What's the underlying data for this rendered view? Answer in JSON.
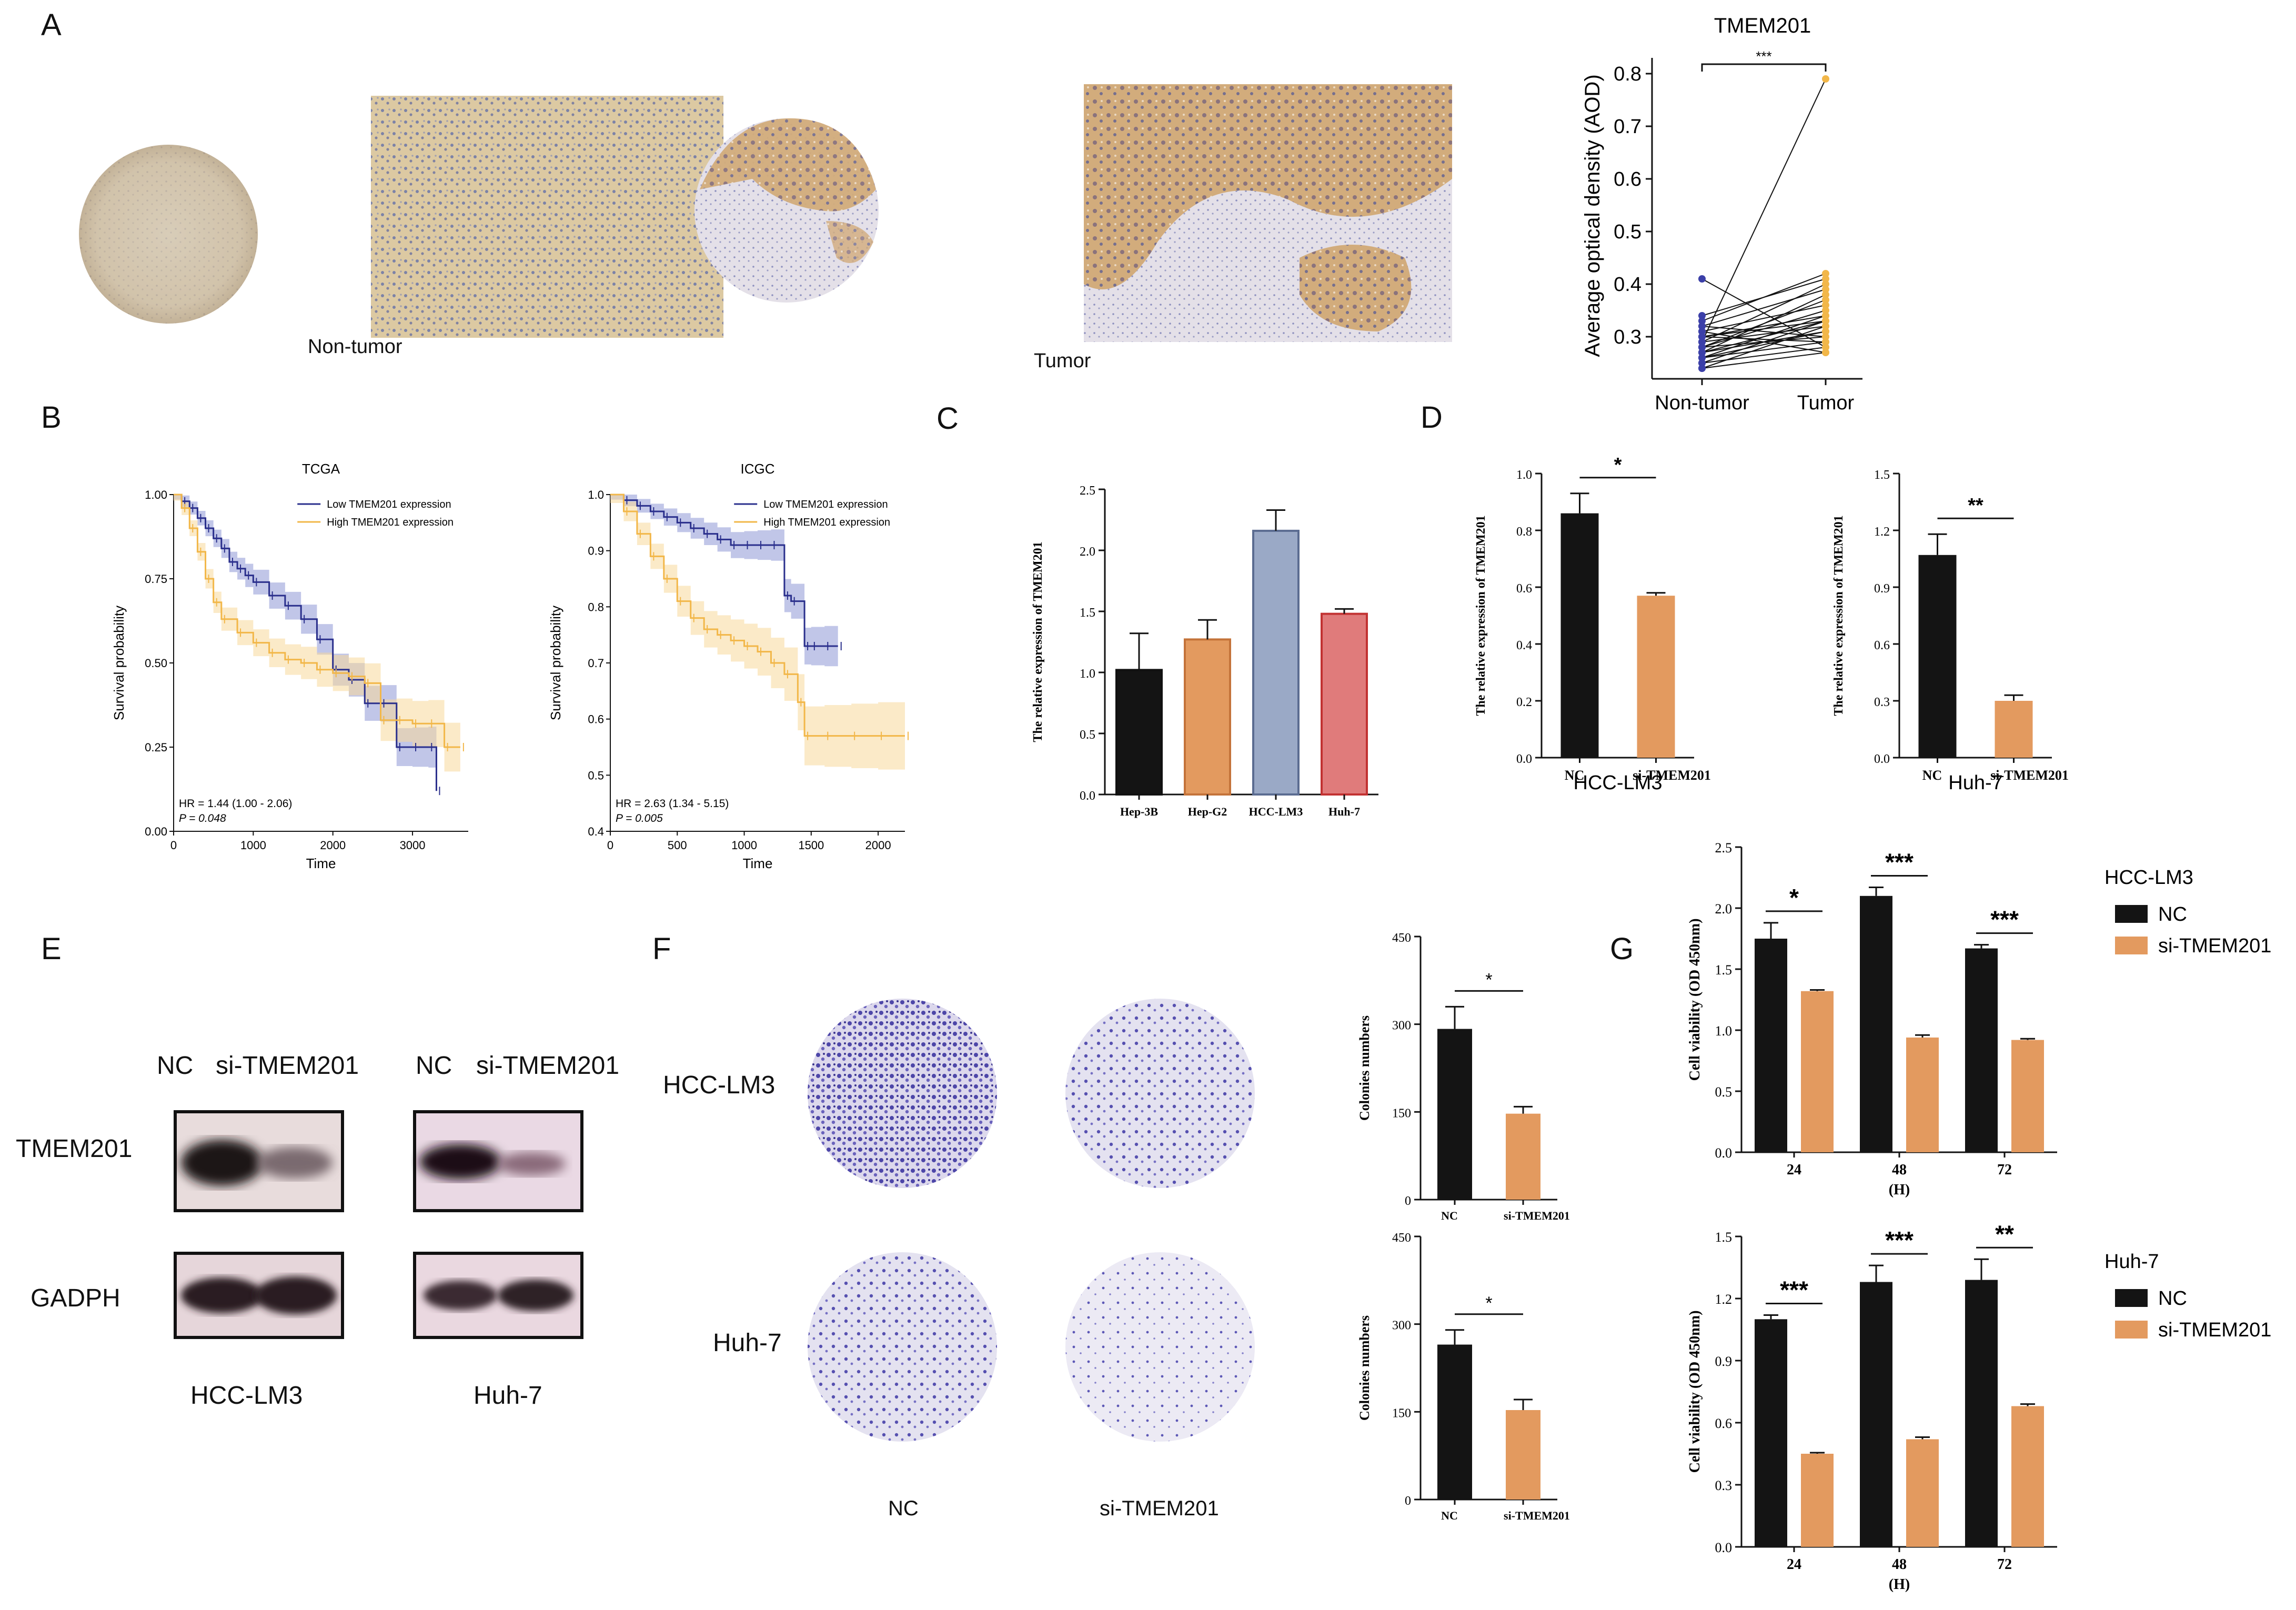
{
  "panels": {
    "A": "A",
    "B": "B",
    "C": "C",
    "D": "D",
    "E": "E",
    "F": "F",
    "G": "G"
  },
  "colors": {
    "black": "#121212",
    "orange": "#e39a5f",
    "blue": "#9aa9c6",
    "red": "#e07b7b",
    "navy": "#2a2f8c",
    "yellow": "#f2b749",
    "tissue_tan": "#d9b88c",
    "stain_purple": "#6b62b8"
  },
  "panel_a": {
    "non_tumor_label": "Non-tumor",
    "tumor_label": "Tumor"
  },
  "panel_e": {
    "lane_labels": [
      "NC",
      "si-TMEM201",
      "NC",
      "si-TMEM201"
    ],
    "row_labels": [
      "TMEM201",
      "GADPH"
    ],
    "group_labels": [
      "HCC-LM3",
      "Huh-7"
    ]
  },
  "panel_f": {
    "row_labels": [
      "HCC-LM3",
      "Huh-7"
    ],
    "col_labels": [
      "NC",
      "si-TMEM201"
    ]
  },
  "chart_data": [
    {
      "id": "A-aod",
      "type": "line",
      "title": "TMEM201",
      "ylabel": "Average optical density (AOD)",
      "categories": [
        "Non-tumor",
        "Tumor"
      ],
      "yticks": [
        "0.3",
        "0.4",
        "0.5",
        "0.6",
        "0.7",
        "0.8"
      ],
      "ylim": [
        0.23,
        0.83
      ],
      "significance": "***",
      "pairs": [
        [
          0.41,
          0.28
        ],
        [
          0.34,
          0.41
        ],
        [
          0.33,
          0.42
        ],
        [
          0.32,
          0.39
        ],
        [
          0.31,
          0.36
        ],
        [
          0.3,
          0.34
        ],
        [
          0.3,
          0.33
        ],
        [
          0.29,
          0.32
        ],
        [
          0.29,
          0.4
        ],
        [
          0.28,
          0.3
        ],
        [
          0.28,
          0.35
        ],
        [
          0.27,
          0.31
        ],
        [
          0.27,
          0.38
        ],
        [
          0.26,
          0.29
        ],
        [
          0.26,
          0.34
        ],
        [
          0.25,
          0.33
        ],
        [
          0.25,
          0.28
        ],
        [
          0.24,
          0.32
        ],
        [
          0.24,
          0.27
        ],
        [
          0.32,
          0.3
        ],
        [
          0.31,
          0.27
        ],
        [
          0.3,
          0.29
        ],
        [
          0.28,
          0.37
        ],
        [
          0.27,
          0.33
        ],
        [
          0.26,
          0.31
        ],
        [
          0.29,
          0.79
        ]
      ]
    },
    {
      "id": "B-tcga",
      "type": "line",
      "title": "TCGA",
      "xlabel": "Time",
      "ylabel": "Survival probability",
      "xticks": [
        "0",
        "1000",
        "2000",
        "3000"
      ],
      "yticks": [
        "0.00",
        "0.25",
        "0.50",
        "0.75",
        "1.00"
      ],
      "xlim": [
        0,
        3700
      ],
      "ylim": [
        0,
        1
      ],
      "legend": [
        "Low TMEM201 expression",
        "High TMEM201 expression"
      ],
      "hr_text": "HR = 1.44 (1.00 -  2.06)",
      "p_text": "P = 0.048",
      "series": [
        {
          "name": "Low TMEM201 expression",
          "x": [
            0,
            100,
            200,
            300,
            400,
            500,
            600,
            700,
            800,
            900,
            1000,
            1200,
            1400,
            1600,
            1800,
            2000,
            2200,
            2400,
            2600,
            2800,
            3000,
            3200,
            3300
          ],
          "y": [
            1.0,
            0.98,
            0.96,
            0.93,
            0.9,
            0.87,
            0.84,
            0.8,
            0.78,
            0.76,
            0.74,
            0.7,
            0.67,
            0.63,
            0.57,
            0.48,
            0.45,
            0.38,
            0.38,
            0.25,
            0.25,
            0.25,
            0.12
          ]
        },
        {
          "name": "High TMEM201 expression",
          "x": [
            0,
            100,
            200,
            300,
            400,
            500,
            600,
            800,
            1000,
            1200,
            1400,
            1600,
            1800,
            2000,
            2200,
            2400,
            2600,
            2800,
            3000,
            3200,
            3400,
            3600
          ],
          "y": [
            1.0,
            0.96,
            0.9,
            0.83,
            0.75,
            0.68,
            0.63,
            0.59,
            0.56,
            0.53,
            0.51,
            0.5,
            0.48,
            0.47,
            0.46,
            0.44,
            0.33,
            0.33,
            0.32,
            0.32,
            0.25,
            0.25
          ]
        }
      ]
    },
    {
      "id": "B-icgc",
      "type": "line",
      "title": "ICGC",
      "xlabel": "Time",
      "ylabel": "Survival probability",
      "xticks": [
        "0",
        "500",
        "1000",
        "1500",
        "2000"
      ],
      "yticks": [
        "0.4",
        "0.5",
        "0.6",
        "0.7",
        "0.8",
        "0.9",
        "1.0"
      ],
      "xlim": [
        0,
        2200
      ],
      "ylim": [
        0.4,
        1.0
      ],
      "legend": [
        "Low TMEM201 expression",
        "High TMEM201 expression"
      ],
      "hr_text": "HR = 2.63 (1.34 -  5.15)",
      "p_text": "P = 0.005",
      "series": [
        {
          "name": "Low TMEM201 expression",
          "x": [
            0,
            100,
            200,
            300,
            400,
            500,
            600,
            700,
            800,
            900,
            1000,
            1100,
            1200,
            1300,
            1350,
            1450,
            1500,
            1600,
            1700
          ],
          "y": [
            1.0,
            0.99,
            0.98,
            0.97,
            0.96,
            0.95,
            0.94,
            0.93,
            0.92,
            0.91,
            0.91,
            0.91,
            0.91,
            0.82,
            0.81,
            0.73,
            0.73,
            0.73,
            0.73
          ]
        },
        {
          "name": "High TMEM201 expression",
          "x": [
            0,
            100,
            200,
            300,
            400,
            500,
            600,
            700,
            800,
            900,
            1000,
            1100,
            1200,
            1300,
            1400,
            1450,
            1600,
            1800,
            2000,
            2200
          ],
          "y": [
            1.0,
            0.97,
            0.93,
            0.89,
            0.85,
            0.81,
            0.78,
            0.76,
            0.75,
            0.74,
            0.73,
            0.72,
            0.7,
            0.68,
            0.63,
            0.57,
            0.57,
            0.57,
            0.57,
            0.57
          ]
        }
      ]
    },
    {
      "id": "C",
      "type": "bar",
      "ylabel": "The relative expression of TMEM201",
      "categories": [
        "Hep-3B",
        "Hep-G2",
        "HCC-LM3",
        "Huh-7"
      ],
      "values": [
        1.02,
        1.27,
        2.16,
        1.48
      ],
      "errors": [
        0.3,
        0.16,
        0.17,
        0.04
      ],
      "yticks": [
        "0.0",
        "0.5",
        "1.0",
        "1.5",
        "2.0",
        "2.5"
      ],
      "ylim": [
        0,
        2.5
      ]
    },
    {
      "id": "D-lm3",
      "type": "bar",
      "ylabel": "The relative expression of TMEM201",
      "xlabel": "HCC-LM3",
      "categories": [
        "NC",
        "si-TMEM201"
      ],
      "values": [
        0.86,
        0.57
      ],
      "errors": [
        0.07,
        0.01
      ],
      "yticks": [
        "0.0",
        "0.2",
        "0.4",
        "0.6",
        "0.8",
        "1.0"
      ],
      "ylim": [
        0,
        1.0
      ],
      "significance": "*"
    },
    {
      "id": "D-huh7",
      "type": "bar",
      "ylabel": "The relative expression of TMEM201",
      "xlabel": "Huh-7",
      "categories": [
        "NC",
        "si-TMEM201"
      ],
      "values": [
        1.07,
        0.3
      ],
      "errors": [
        0.11,
        0.03
      ],
      "yticks": [
        "0.0",
        "0.3",
        "0.6",
        "0.9",
        "1.2",
        "1.5"
      ],
      "ylim": [
        0,
        1.5
      ],
      "significance": "**"
    },
    {
      "id": "F-lm3",
      "type": "bar",
      "ylabel": "Colonies numbers",
      "categories": [
        "NC",
        "si-TMEM201"
      ],
      "values": [
        292,
        147
      ],
      "errors": [
        38,
        12
      ],
      "yticks": [
        "0",
        "150",
        "300",
        "450"
      ],
      "ylim": [
        0,
        450
      ],
      "significance": "*"
    },
    {
      "id": "F-huh7",
      "type": "bar",
      "ylabel": "Colonies numbers",
      "categories": [
        "NC",
        "si-TMEM201"
      ],
      "values": [
        265,
        153
      ],
      "errors": [
        25,
        18
      ],
      "yticks": [
        "0",
        "150",
        "300",
        "450"
      ],
      "ylim": [
        0,
        450
      ],
      "significance": "*"
    },
    {
      "id": "G-lm3",
      "type": "bar",
      "ylabel": "Cell viability (OD 450nm)",
      "xlabel": "(H)",
      "legend_title": "HCC-LM3",
      "categories": [
        "24",
        "48",
        "72"
      ],
      "series": [
        {
          "name": "NC",
          "values": [
            1.75,
            2.1,
            1.67
          ],
          "errors": [
            0.13,
            0.07,
            0.03
          ]
        },
        {
          "name": "si-TMEM201",
          "values": [
            1.32,
            0.94,
            0.92
          ],
          "errors": [
            0.01,
            0.02,
            0.01
          ]
        }
      ],
      "yticks": [
        "0.0",
        "0.5",
        "1.0",
        "1.5",
        "2.0",
        "2.5"
      ],
      "ylim": [
        0,
        2.5
      ],
      "significance": [
        "*",
        "***",
        "***"
      ]
    },
    {
      "id": "G-huh7",
      "type": "bar",
      "ylabel": "Cell viability (OD 450nm)",
      "xlabel": "(H)",
      "legend_title": "Huh-7",
      "categories": [
        "24",
        "48",
        "72"
      ],
      "series": [
        {
          "name": "NC",
          "values": [
            1.1,
            1.28,
            1.29
          ],
          "errors": [
            0.02,
            0.08,
            0.1
          ]
        },
        {
          "name": "si-TMEM201",
          "values": [
            0.45,
            0.52,
            0.68
          ],
          "errors": [
            0.005,
            0.01,
            0.01
          ]
        }
      ],
      "yticks": [
        "0.0",
        "0.3",
        "0.6",
        "0.9",
        "1.2",
        "1.5"
      ],
      "ylim": [
        0,
        1.5
      ],
      "significance": [
        "***",
        "***",
        "**"
      ]
    }
  ]
}
